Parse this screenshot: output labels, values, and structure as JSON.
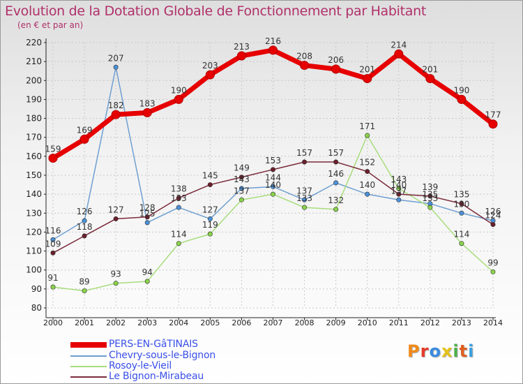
{
  "title": "Evolution de la Dotation Globale de Fonctionnement par Habitant",
  "subtitle": "(en € et par an)",
  "logo_text": "Proxiti",
  "colors": {
    "title": "#b0306a",
    "axis": "#222222",
    "grid": "#c8c8c8",
    "legend_text": "#3a50e8"
  },
  "chart_data": {
    "type": "line",
    "title": "Evolution de la Dotation Globale de Fonctionnement par Habitant",
    "ylabel": "(en € et par an)",
    "xlabel": "",
    "categories": [
      "2000",
      "2001",
      "2002",
      "2003",
      "2004",
      "2005",
      "2006",
      "2007",
      "2008",
      "2009",
      "2010",
      "2011",
      "2012",
      "2013",
      "2014"
    ],
    "ylim": [
      80,
      220
    ],
    "yticks": [
      80,
      90,
      100,
      110,
      120,
      130,
      140,
      150,
      160,
      170,
      180,
      190,
      200,
      210,
      220
    ],
    "grid": true,
    "series": [
      {
        "name": "Chevry-sous-le-Bignon",
        "color": "#6f9fd0",
        "marker": "#4a90d9",
        "width": 1.5,
        "values": [
          116,
          126,
          207,
          125,
          133,
          127,
          143,
          144,
          137,
          146,
          140,
          137,
          135,
          130,
          126
        ]
      },
      {
        "name": "Rosoy-le-Vieil",
        "color": "#a7dd7c",
        "marker": "#8ad34a",
        "width": 1.5,
        "values": [
          91,
          89,
          93,
          94,
          114,
          119,
          137,
          140,
          133,
          132,
          171,
          143,
          133,
          114,
          99
        ]
      },
      {
        "name": "Le Bignon-Mirabeau",
        "color": "#7a2a3a",
        "marker": "#6a1f2c",
        "width": 1.5,
        "values": [
          109,
          118,
          127,
          128,
          138,
          145,
          149,
          153,
          157,
          157,
          152,
          140,
          139,
          135,
          124
        ]
      },
      {
        "name": "PERS-EN-GâTINAIS",
        "color": "#e60000",
        "marker": "#e60000",
        "width": 7,
        "values": [
          159,
          169,
          182,
          183,
          190,
          203,
          213,
          216,
          208,
          206,
          201,
          214,
          201,
          190,
          177
        ]
      }
    ],
    "value_labels": {
      "Chevry-sous-le-Bignon": [
        "116",
        "126",
        "207",
        "125",
        "133",
        "127",
        "143",
        "144",
        "137",
        "146",
        "140",
        "137",
        "135",
        "130",
        "126"
      ],
      "Rosoy-le-Vieil": [
        "91",
        "89",
        "93",
        "94",
        "114",
        "119",
        "137",
        "140",
        "133",
        "132",
        "171",
        "143",
        "133",
        "114",
        "99"
      ],
      "Le Bignon-Mirabeau": [
        "109",
        "118",
        "127",
        "128",
        "138",
        "145",
        "149",
        "153",
        "157",
        "157",
        "152",
        "140",
        "139",
        "135",
        "124"
      ],
      "PERS-EN-GâTINAIS": [
        "159",
        "169",
        "182",
        "183",
        "190",
        "203",
        "213",
        "216",
        "208",
        "206",
        "201",
        "214",
        "201",
        "190",
        "177"
      ]
    },
    "legend": [
      {
        "name": "PERS-EN-GâTINAIS",
        "color": "#e60000",
        "thick": true
      },
      {
        "name": "Chevry-sous-le-Bignon",
        "color": "#6f9fd0",
        "thick": false
      },
      {
        "name": "Rosoy-le-Vieil",
        "color": "#a7dd7c",
        "thick": false
      },
      {
        "name": "Le Bignon-Mirabeau",
        "color": "#7a2a3a",
        "thick": false
      }
    ],
    "legend_position": "bottom-left"
  }
}
